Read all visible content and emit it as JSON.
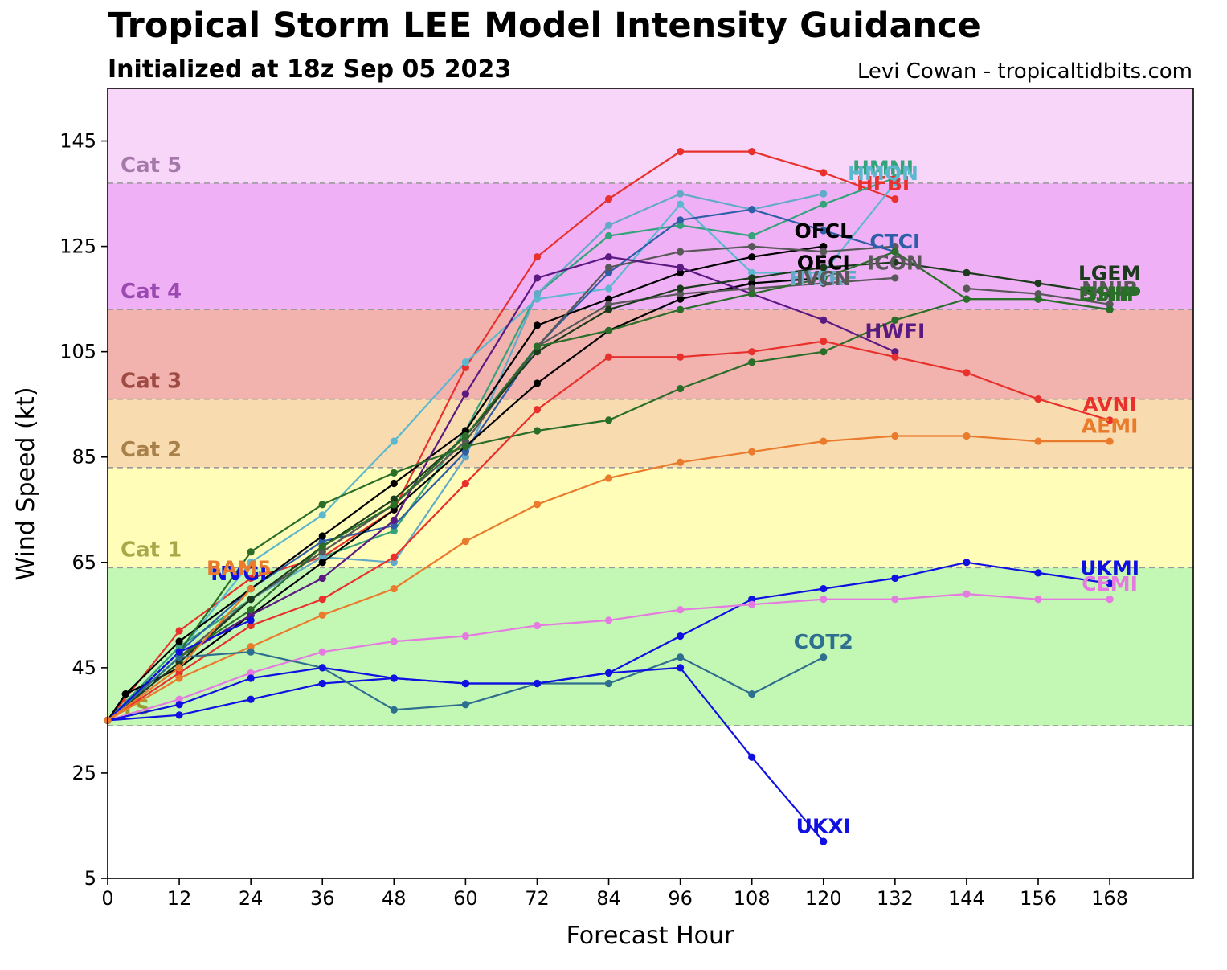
{
  "header": {
    "title": "Tropical Storm LEE Model Intensity Guidance",
    "subtitle": "Initialized at 18z Sep 05 2023",
    "credit": "Levi Cowan - tropicaltidbits.com"
  },
  "chart_data": {
    "type": "line",
    "xlabel": "Forecast Hour",
    "ylabel": "Wind Speed (kt)",
    "xlim": [
      0,
      182
    ],
    "ylim": [
      5,
      155
    ],
    "x_ticks": [
      0,
      12,
      24,
      36,
      48,
      60,
      72,
      84,
      96,
      108,
      120,
      132,
      144,
      156,
      168
    ],
    "y_ticks": [
      5,
      25,
      45,
      65,
      85,
      105,
      125,
      145
    ],
    "grid": false,
    "intensity_bands": [
      {
        "label": "",
        "from": 5,
        "to": 34,
        "color": "#ffffff",
        "label_color": "#000000"
      },
      {
        "label": "TS",
        "from": 34,
        "to": 64,
        "color": "#c2f8b4",
        "label_color": "#9a9a30"
      },
      {
        "label": "Cat 1",
        "from": 64,
        "to": 83,
        "color": "#fffdb8",
        "label_color": "#a8a84a"
      },
      {
        "label": "Cat 2",
        "from": 83,
        "to": 96,
        "color": "#f8dcb0",
        "label_color": "#a8804a"
      },
      {
        "label": "Cat 3",
        "from": 96,
        "to": 113,
        "color": "#f2b2ad",
        "label_color": "#a04a44"
      },
      {
        "label": "Cat 4",
        "from": 113,
        "to": 137,
        "color": "#f0b0f6",
        "label_color": "#9a4ab0"
      },
      {
        "label": "Cat 5",
        "from": 137,
        "to": 155,
        "color": "#f8d6f9",
        "label_color": "#a478a8"
      }
    ],
    "series": [
      {
        "name": "HFBI",
        "color": "#e8302c",
        "x": [
          0,
          12,
          24,
          36,
          48,
          60,
          72,
          84,
          96,
          108,
          120,
          132
        ],
        "values": [
          35,
          52,
          62,
          66,
          75,
          102,
          123,
          134,
          143,
          143,
          139,
          134
        ],
        "label_at": [
          130,
          137
        ]
      },
      {
        "name": "HMNI",
        "color": "#35a37a",
        "x": [
          0,
          12,
          24,
          36,
          48,
          60,
          72,
          84,
          96,
          108,
          120,
          132
        ],
        "values": [
          35,
          49,
          58,
          66,
          71,
          90,
          116,
          127,
          129,
          127,
          133,
          138
        ],
        "label_at": [
          130,
          140
        ]
      },
      {
        "name": "HMON",
        "color": "#5bb8cf",
        "x": [
          0,
          12,
          24,
          36,
          48,
          60,
          72,
          84,
          96,
          108,
          120,
          132
        ],
        "values": [
          35,
          48,
          65,
          74,
          88,
          103,
          115,
          117,
          133,
          120,
          120,
          137
        ],
        "label_at": [
          130,
          139
        ]
      },
      {
        "name": "HWRF",
        "color": "#62aac8",
        "x": [
          0,
          12,
          24,
          36,
          48,
          60,
          72,
          84,
          96,
          108,
          120
        ],
        "values": [
          35,
          47,
          58,
          66,
          65,
          85,
          116,
          129,
          135,
          132,
          135
        ],
        "label_at": [
          120,
          119
        ]
      },
      {
        "name": "CTCI",
        "color": "#2e5ea8",
        "x": [
          0,
          12,
          24,
          36,
          48,
          60,
          72,
          84,
          96,
          108,
          120,
          132
        ],
        "values": [
          35,
          48,
          60,
          69,
          72,
          86,
          106,
          120,
          130,
          132,
          128,
          124
        ],
        "label_at": [
          132,
          126
        ]
      },
      {
        "name": "OFCL",
        "color": "#000000",
        "x": [
          0,
          3,
          12,
          24,
          36,
          48,
          60,
          72,
          84,
          96,
          108,
          120
        ],
        "values": [
          35,
          40,
          50,
          60,
          70,
          80,
          90,
          110,
          115,
          120,
          123,
          125
        ],
        "label_at": [
          120,
          128
        ]
      },
      {
        "name": "OFCI",
        "color": "#000000",
        "x": [
          0,
          3,
          12,
          24,
          36,
          48,
          60,
          72,
          84,
          96,
          108,
          120
        ],
        "values": [
          35,
          40,
          45,
          55,
          65,
          75,
          87,
          99,
          109,
          115,
          118,
          119
        ],
        "label_at": [
          120,
          122
        ]
      },
      {
        "name": "ICON",
        "color": "#585858",
        "x": [
          0,
          12,
          24,
          36,
          48,
          60,
          72,
          84,
          96,
          108,
          120,
          132
        ],
        "values": [
          35,
          47,
          58,
          67,
          76,
          88,
          106,
          121,
          124,
          125,
          124,
          125
        ],
        "label_at": [
          132,
          122
        ]
      },
      {
        "name": "HWFI",
        "color": "#5a1a82",
        "x": [
          0,
          12,
          24,
          36,
          48,
          60,
          72,
          84,
          96,
          108,
          120,
          132
        ],
        "values": [
          35,
          47,
          55,
          62,
          73,
          97,
          119,
          123,
          121,
          116,
          111,
          105
        ],
        "label_at": [
          132,
          109
        ]
      },
      {
        "name": "IVCN",
        "color": "#585858",
        "x": [
          0,
          12,
          24,
          36,
          48,
          60,
          72,
          84,
          96,
          108,
          120,
          132
        ],
        "values": [
          35,
          46,
          58,
          67,
          76,
          88,
          106,
          114,
          116,
          117,
          118,
          119
        ],
        "label_at": [
          120,
          119
        ]
      },
      {
        "name": "LGEM",
        "color": "#1c3a1c",
        "x": [
          0,
          12,
          24,
          36,
          48,
          60,
          72,
          84,
          96,
          108,
          120,
          132,
          144,
          156,
          168
        ],
        "values": [
          35,
          46,
          58,
          68,
          77,
          89,
          105,
          113,
          117,
          119,
          121,
          122,
          120,
          118,
          116
        ],
        "label_at": [
          168,
          120
        ]
      },
      {
        "name": "NNIB",
        "color": "#585858",
        "x": [
          144,
          156,
          168
        ],
        "values": [
          117,
          116,
          114
        ],
        "label_at": [
          168,
          117
        ]
      },
      {
        "name": "DSHP",
        "color": "#2a6e2a",
        "x": [
          0,
          12,
          24,
          36,
          48,
          60,
          72,
          84,
          96,
          108,
          120,
          132,
          144,
          156,
          168
        ],
        "values": [
          35,
          47,
          56,
          68,
          76,
          89,
          106,
          109,
          113,
          116,
          119,
          124,
          115,
          115,
          113
        ],
        "label_at": [
          168,
          116
        ]
      },
      {
        "name": "SHIP",
        "color": "#2a6e2a",
        "x": [
          0,
          12,
          24,
          36,
          48,
          60,
          72,
          84,
          96,
          108,
          120,
          132,
          144,
          156,
          168
        ],
        "values": [
          35,
          48,
          67,
          76,
          82,
          87,
          90,
          92,
          98,
          103,
          105,
          111,
          115,
          115,
          113
        ],
        "label_at": [
          168,
          116
        ]
      },
      {
        "name": "AVNI",
        "color": "#e8302c",
        "x": [
          0,
          12,
          24,
          36,
          48,
          60,
          72,
          84,
          96,
          108,
          120,
          132,
          144,
          156,
          168
        ],
        "values": [
          35,
          44,
          53,
          58,
          66,
          80,
          94,
          104,
          104,
          105,
          107,
          104,
          101,
          96,
          92
        ],
        "label_at": [
          168,
          95
        ]
      },
      {
        "name": "AEMI",
        "color": "#ea7a2c",
        "x": [
          0,
          12,
          24,
          36,
          48,
          60,
          72,
          84,
          96,
          108,
          120,
          132,
          144,
          156,
          168
        ],
        "values": [
          35,
          43,
          49,
          55,
          60,
          69,
          76,
          81,
          84,
          86,
          88,
          89,
          89,
          88,
          88
        ],
        "label_at": [
          168,
          91
        ]
      },
      {
        "name": "UKMI",
        "color": "#1010e0",
        "x": [
          0,
          12,
          24,
          36,
          48,
          60,
          72,
          84,
          96,
          108,
          120,
          132,
          144,
          156,
          168
        ],
        "values": [
          35,
          36,
          39,
          42,
          43,
          42,
          42,
          44,
          51,
          58,
          60,
          62,
          65,
          63,
          61
        ],
        "label_at": [
          168,
          64
        ]
      },
      {
        "name": "CEMI",
        "color": "#e57ae0",
        "x": [
          0,
          12,
          24,
          36,
          48,
          60,
          72,
          84,
          96,
          108,
          120,
          132,
          144,
          156,
          168
        ],
        "values": [
          35,
          39,
          44,
          48,
          50,
          51,
          53,
          54,
          56,
          57,
          58,
          58,
          59,
          58,
          58
        ],
        "label_at": [
          168,
          61
        ]
      },
      {
        "name": "COT2",
        "color": "#2e6e8e",
        "x": [
          0,
          12,
          24,
          36,
          48,
          60,
          72,
          84,
          96,
          108,
          120
        ],
        "values": [
          35,
          47,
          48,
          45,
          37,
          38,
          42,
          42,
          47,
          40,
          47
        ],
        "label_at": [
          120,
          50
        ]
      },
      {
        "name": "UKXI",
        "color": "#1010e0",
        "x": [
          0,
          12,
          24,
          36,
          48,
          60,
          72,
          84,
          96,
          108,
          120
        ],
        "values": [
          35,
          38,
          43,
          45,
          43,
          42,
          42,
          44,
          45,
          28,
          12
        ],
        "label_at": [
          120,
          15
        ]
      },
      {
        "name": "NVGI",
        "color": "#1010e0",
        "x": [
          0,
          12,
          24
        ],
        "values": [
          35,
          48,
          54
        ],
        "label_at": [
          22,
          63
        ]
      },
      {
        "name": "BAM5",
        "color": "#ea7a2c",
        "x": [
          0,
          12,
          24
        ],
        "values": [
          35,
          45,
          60
        ],
        "label_at": [
          22,
          64
        ]
      }
    ]
  }
}
